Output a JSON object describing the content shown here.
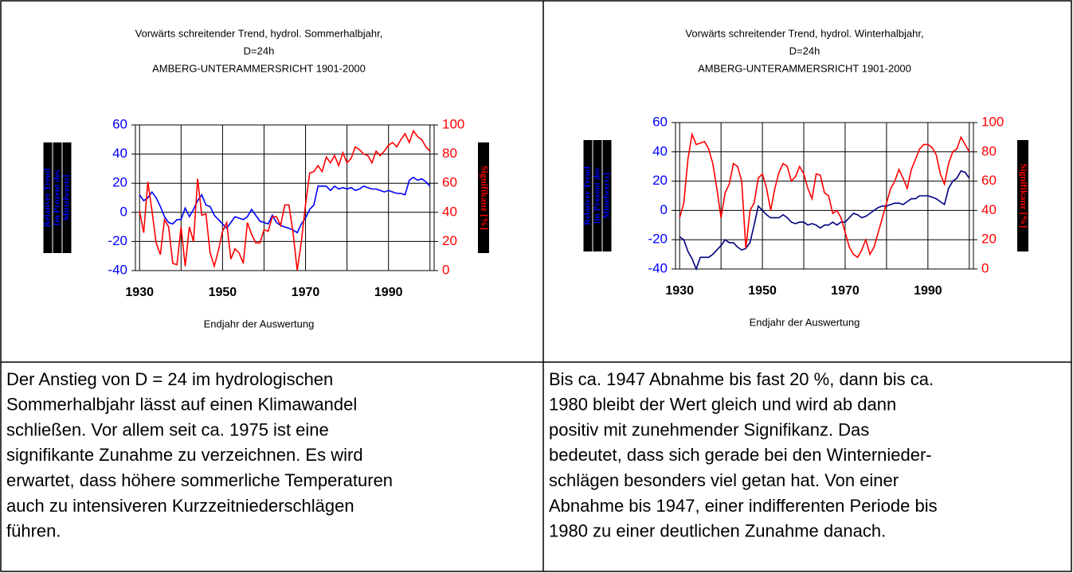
{
  "chart_data": [
    {
      "type": "line",
      "title": [
        "Vorwärts schreitender Trend, hydrol. Sommerhalbjahr,",
        "D=24h",
        "AMBERG-UNTERAMMERSRICHT 1901-2000"
      ],
      "xlabel": "Endjahr der Auswertung",
      "ylabel": [
        "Relativer Trend",
        "[in Prozent des",
        "Mittelwerts]"
      ],
      "y2label": "Signifikanz [%]",
      "x": [
        1930,
        1931,
        1932,
        1933,
        1934,
        1935,
        1936,
        1937,
        1938,
        1939,
        1940,
        1941,
        1942,
        1943,
        1944,
        1945,
        1946,
        1947,
        1948,
        1949,
        1950,
        1951,
        1952,
        1953,
        1954,
        1955,
        1956,
        1957,
        1958,
        1959,
        1960,
        1961,
        1962,
        1963,
        1964,
        1965,
        1966,
        1967,
        1968,
        1969,
        1970,
        1971,
        1972,
        1973,
        1974,
        1975,
        1976,
        1977,
        1978,
        1979,
        1980,
        1981,
        1982,
        1983,
        1984,
        1985,
        1986,
        1987,
        1988,
        1989,
        1990,
        1991,
        1992,
        1993,
        1994,
        1995,
        1996,
        1997,
        1998,
        1999,
        2000
      ],
      "xlim": [
        1929,
        2001
      ],
      "xticks": [
        1930,
        1950,
        1970,
        1990
      ],
      "x_minor_ticks": [
        1940,
        1960,
        1980,
        2000
      ],
      "ylim": [
        -40,
        60
      ],
      "yticks": [
        -40,
        -20,
        0,
        20,
        40,
        60
      ],
      "ytick_color": "#0000ff",
      "y2lim": [
        0,
        100
      ],
      "y2ticks": [
        0,
        20,
        40,
        60,
        80,
        100
      ],
      "y2tick_color": "#ff0000",
      "grid": true,
      "series": [
        {
          "color": "#0000ff",
          "axis": "y",
          "values": [
            12,
            8,
            10,
            14,
            10,
            4,
            -3,
            -7,
            -8,
            -5,
            -5,
            3,
            -3,
            2,
            8,
            12,
            5,
            4,
            -2,
            -5,
            -8,
            -11,
            -7,
            -3,
            -4,
            -5,
            -3,
            2,
            -2,
            -6,
            -7,
            -8,
            -2,
            -7,
            -9,
            -10,
            -11,
            -12,
            -14,
            -8,
            -4,
            2,
            5,
            18,
            18,
            18,
            15,
            18,
            16,
            17,
            16,
            17,
            15,
            16,
            18,
            17,
            16,
            16,
            15,
            14,
            15,
            14,
            13,
            13,
            12,
            22,
            24,
            22,
            23,
            21,
            18
          ]
        },
        {
          "color": "#ff0000",
          "axis": "y2",
          "values": [
            41,
            26,
            61,
            41,
            19,
            11,
            35,
            30,
            5,
            4,
            30,
            3,
            30,
            20,
            63,
            38,
            39,
            12,
            3,
            14,
            27,
            33,
            8,
            15,
            12,
            5,
            33,
            25,
            19,
            19,
            28,
            27,
            37,
            37,
            31,
            45,
            45,
            26,
            0,
            20,
            45,
            67,
            68,
            72,
            68,
            78,
            74,
            79,
            72,
            81,
            74,
            77,
            85,
            83,
            80,
            79,
            74,
            82,
            79,
            82,
            86,
            88,
            85,
            90,
            94,
            88,
            96,
            92,
            90,
            85,
            82
          ]
        }
      ]
    },
    {
      "type": "line",
      "title": [
        "Vorwärts schreitender Trend, hydrol. Winterhalbjahr,",
        "D=24h",
        "AMBERG-UNTERAMMERSRICHT 1901-2000"
      ],
      "xlabel": "Endjahr der Auswertung",
      "ylabel": [
        "Relativer Trend",
        "[in Prozent des",
        "Mittelwerts]"
      ],
      "y2label": "Signifikanz [%]",
      "x": [
        1930,
        1931,
        1932,
        1933,
        1934,
        1935,
        1936,
        1937,
        1938,
        1939,
        1940,
        1941,
        1942,
        1943,
        1944,
        1945,
        1946,
        1947,
        1948,
        1949,
        1950,
        1951,
        1952,
        1953,
        1954,
        1955,
        1956,
        1957,
        1958,
        1959,
        1960,
        1961,
        1962,
        1963,
        1964,
        1965,
        1966,
        1967,
        1968,
        1969,
        1970,
        1971,
        1972,
        1973,
        1974,
        1975,
        1976,
        1977,
        1978,
        1979,
        1980,
        1981,
        1982,
        1983,
        1984,
        1985,
        1986,
        1987,
        1988,
        1989,
        1990,
        1991,
        1992,
        1993,
        1994,
        1995,
        1996,
        1997,
        1998,
        1999,
        2000
      ],
      "xlim": [
        1929,
        2001
      ],
      "xticks": [
        1930,
        1950,
        1970,
        1990
      ],
      "x_minor_ticks": [
        1940,
        1960,
        1980,
        2000
      ],
      "ylim": [
        -40,
        60
      ],
      "yticks": [
        -40,
        -20,
        0,
        20,
        40,
        60
      ],
      "ytick_color": "#0000ff",
      "y2lim": [
        0,
        100
      ],
      "y2ticks": [
        0,
        20,
        40,
        60,
        80,
        100
      ],
      "y2tick_color": "#ff0000",
      "grid": true,
      "series": [
        {
          "color": "#000080",
          "axis": "y",
          "values": [
            -18,
            -20,
            -28,
            -33,
            -40,
            -32,
            -32,
            -32,
            -30,
            -27,
            -24,
            -20,
            -22,
            -22,
            -25,
            -27,
            -26,
            -22,
            -10,
            3,
            0,
            -3,
            -5,
            -5,
            -5,
            -3,
            -5,
            -8,
            -9,
            -8,
            -8,
            -10,
            -9,
            -10,
            -12,
            -10,
            -10,
            -8,
            -10,
            -8,
            -8,
            -5,
            -2,
            -3,
            -5,
            -4,
            -2,
            0,
            2,
            3,
            3,
            4,
            5,
            5,
            4,
            6,
            8,
            8,
            10,
            10,
            10,
            9,
            8,
            6,
            4,
            15,
            20,
            22,
            27,
            26,
            22
          ]
        },
        {
          "color": "#ff0000",
          "axis": "y2",
          "values": [
            35,
            45,
            75,
            92,
            85,
            86,
            87,
            82,
            72,
            55,
            35,
            52,
            58,
            72,
            70,
            60,
            14,
            40,
            45,
            62,
            65,
            55,
            40,
            55,
            66,
            72,
            70,
            60,
            63,
            70,
            65,
            55,
            48,
            65,
            64,
            52,
            50,
            38,
            40,
            35,
            25,
            15,
            10,
            8,
            13,
            20,
            10,
            15,
            25,
            35,
            45,
            55,
            60,
            68,
            62,
            55,
            68,
            75,
            82,
            85,
            85,
            83,
            78,
            65,
            58,
            72,
            80,
            82,
            90,
            85,
            80
          ]
        }
      ]
    }
  ],
  "captions": [
    [
      "Der Anstieg von D = 24 im hydrologischen",
      "Sommerhalbjahr lässt auf einen Klimawandel",
      "schließen. Vor allem seit ca. 1975 ist eine",
      "signifikante Zunahme zu verzeichnen. Es wird",
      "erwartet, dass höhere sommerliche Temperaturen",
      "auch zu intensiveren Kurzzeitniederschlägen",
      "führen."
    ],
    [
      "Bis ca. 1947 Abnahme bis fast 20 %, dann bis ca.",
      "1980 bleibt der Wert gleich und wird ab dann",
      "positiv mit zunehmender Signifikanz. Das",
      "bedeutet, dass sich gerade bei den Winternieder-",
      "schlägen besonders viel getan hat. Von einer",
      "Abnahme bis 1947, einer indifferenten Periode bis",
      "1980 zu einer deutlichen Zunahme danach."
    ]
  ]
}
